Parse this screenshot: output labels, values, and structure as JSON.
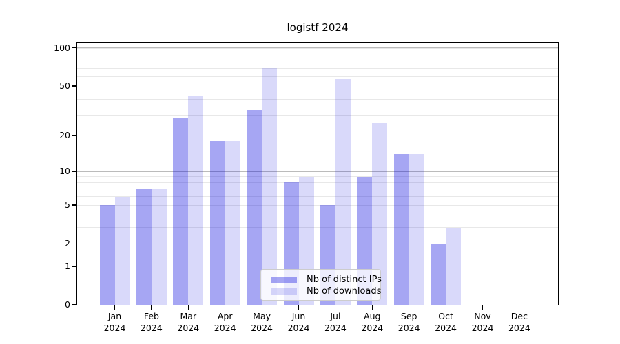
{
  "chart_data": {
    "type": "bar",
    "title": "logistf 2024",
    "categories": [
      "Jan",
      "Feb",
      "Mar",
      "Apr",
      "May",
      "Jun",
      "Jul",
      "Aug",
      "Sep",
      "Oct",
      "Nov",
      "Dec"
    ],
    "year_label": "2024",
    "series": [
      {
        "name": "Nb of distinct IPs",
        "color": "rgba(0,0,220,0.35)",
        "values": [
          5,
          7,
          28,
          18,
          32,
          8,
          5,
          9,
          14,
          2,
          0,
          0
        ]
      },
      {
        "name": "Nb of downloads",
        "color": "rgba(0,0,220,0.15)",
        "values": [
          6,
          7,
          42,
          18,
          69,
          9,
          57,
          25,
          14,
          3,
          0,
          0
        ]
      }
    ],
    "xlabel": "",
    "ylabel": "",
    "yscale": "log1p",
    "yticks": [
      0,
      1,
      2,
      5,
      10,
      20,
      50,
      100
    ],
    "ylim": [
      0,
      110
    ],
    "grid": "on",
    "grid_major_values": [
      1,
      10,
      100
    ],
    "grid_minor_values": [
      2,
      3,
      4,
      5,
      6,
      7,
      8,
      9,
      19,
      29,
      39,
      49,
      59,
      69,
      79,
      89,
      99
    ],
    "legend_position": "lower center"
  },
  "colors": {
    "axis": "#000000",
    "grid_major": "#bbbbbb",
    "grid_minor": "#e8e8e8",
    "legend_border": "#cccccc",
    "legend_background": "rgba(255,255,255,0.8)",
    "text": "#000000"
  }
}
